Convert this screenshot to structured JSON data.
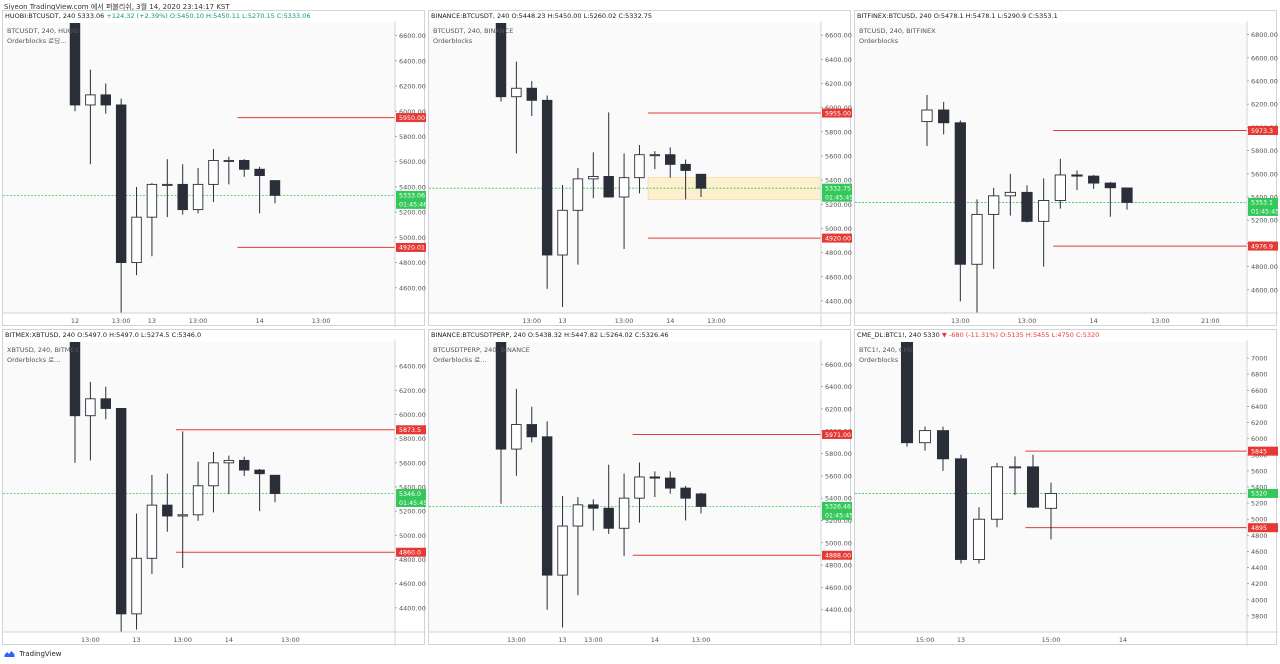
{
  "header": {
    "text": "Siyeon TradingView.com 에서 퍼블리쉬, 3월 14, 2020 23:14:17 KST"
  },
  "footer": {
    "brand": "TradingView",
    "logo_icon": "tradingview-logo-icon"
  },
  "colors": {
    "up": "#ffffff",
    "down": "#2a2e39",
    "red_line": "#e53935",
    "green_line": "#34c759",
    "zone": "#fdf0cf"
  },
  "panels": [
    {
      "header": {
        "symbol": "HUOBI:BTCUSDT, 240",
        "ohlc": "5333.06",
        "change": "+124.32 (+2.39%)",
        "o": "O:5450.10",
        "h": "H:5450.11",
        "l": "L:5270.15",
        "c": "C:5333.06",
        "change_dir": "up"
      },
      "legend": {
        "line1": "BTCUSDT, 240, HUOBI",
        "line2": "Orderblocks 로딩..."
      }
    },
    {
      "header": {
        "symbol": "BINANCE:BTCUSDT, 240",
        "ohlc": "",
        "change": "",
        "o": "O:5448.23",
        "h": "H:5450.00",
        "l": "L:5260.02",
        "c": "C:5332.75",
        "change_dir": ""
      },
      "legend": {
        "line1": "BTCUSDT, 240, BINANCE",
        "line2": "Orderblocks"
      }
    },
    {
      "header": {
        "symbol": "BITFINEX:BTCUSD, 240",
        "ohlc": "",
        "change": "",
        "o": "O:5478.1",
        "h": "H:5478.1",
        "l": "L:5290.9",
        "c": "C:5353.1",
        "change_dir": ""
      },
      "legend": {
        "line1": "BTCUSD, 240, BITFINEX",
        "line2": "Orderblocks"
      }
    },
    {
      "header": {
        "symbol": "BITMEX:XBTUSD, 240",
        "ohlc": "",
        "change": "",
        "o": "O:5497.0",
        "h": "H:5497.0",
        "l": "L:5274.5",
        "c": "C:5346.0",
        "change_dir": ""
      },
      "legend": {
        "line1": "XBTUSD, 240, BITMEX",
        "line2": "Orderblocks 로..."
      }
    },
    {
      "header": {
        "symbol": "BINANCE:BTCUSDTPERP, 240",
        "ohlc": "",
        "change": "",
        "o": "O:5438.32",
        "h": "H:5447.82",
        "l": "L:5264.02",
        "c": "C:5326.46",
        "change_dir": ""
      },
      "legend": {
        "line1": "BTCUSDTPERP, 240, BINANCE",
        "line2": "Orderblocks 로..."
      }
    },
    {
      "header": {
        "symbol": "CME_DL:BTC1!, 240",
        "ohlc": "5330",
        "change": "▼ -680 (-11.31%)",
        "o": "O:5135",
        "h": "H:5455",
        "l": "L:4750",
        "c": "C:5320",
        "change_dir": "dn"
      },
      "legend": {
        "line1": "BTC1!, 240, CME",
        "line2": "Orderblocks"
      }
    }
  ],
  "chart_data": [
    {
      "type": "candlestick",
      "ylim": [
        4400,
        6700
      ],
      "yticks": [
        4400,
        4600,
        4800,
        5000,
        5200,
        5400,
        5600,
        5800,
        6000,
        6200,
        6400,
        6600
      ],
      "xticks": [
        {
          "i": 0,
          "label": "12"
        },
        {
          "i": 3,
          "label": "13:00"
        },
        {
          "i": 5,
          "label": "13"
        },
        {
          "i": 8,
          "label": "13:00"
        },
        {
          "i": 12,
          "label": "14"
        },
        {
          "i": 16,
          "label": "13:00"
        }
      ],
      "candles": [
        {
          "o": 7200,
          "h": 7300,
          "l": 6000,
          "c": 6050
        },
        {
          "o": 6050,
          "h": 6330,
          "l": 5580,
          "c": 6130
        },
        {
          "o": 6130,
          "h": 6220,
          "l": 5980,
          "c": 6050
        },
        {
          "o": 6050,
          "h": 6100,
          "l": 4200,
          "c": 4800
        },
        {
          "o": 4800,
          "h": 5400,
          "l": 4700,
          "c": 5160
        },
        {
          "o": 5160,
          "h": 5430,
          "l": 4850,
          "c": 5420
        },
        {
          "o": 5420,
          "h": 5620,
          "l": 5160,
          "c": 5420
        },
        {
          "o": 5420,
          "h": 5580,
          "l": 5180,
          "c": 5220
        },
        {
          "o": 5220,
          "h": 5550,
          "l": 5190,
          "c": 5420
        },
        {
          "o": 5420,
          "h": 5700,
          "l": 5280,
          "c": 5610
        },
        {
          "o": 5610,
          "h": 5640,
          "l": 5420,
          "c": 5610
        },
        {
          "o": 5610,
          "h": 5620,
          "l": 5480,
          "c": 5540
        },
        {
          "o": 5540,
          "h": 5560,
          "l": 5190,
          "c": 5490
        },
        {
          "o": 5450,
          "h": 5450,
          "l": 5270,
          "c": 5333
        }
      ],
      "levels": [
        {
          "value": 5950,
          "label": "5950.00",
          "start": 11,
          "color": "red"
        },
        {
          "value": 4920,
          "label": "4920.01",
          "start": 11,
          "color": "red"
        },
        {
          "value": 5333,
          "label": "5333.06",
          "label2": "01:45:46",
          "color": "green"
        }
      ],
      "zone": null
    },
    {
      "type": "candlestick",
      "ylim": [
        4300,
        6700
      ],
      "yticks": [
        4400,
        4600,
        4800,
        5000,
        5200,
        5400,
        5600,
        5800,
        6000,
        6200,
        6400,
        6600
      ],
      "xticks": [
        {
          "i": 2,
          "label": "13:00"
        },
        {
          "i": 4,
          "label": "13"
        },
        {
          "i": 8,
          "label": "13:00"
        },
        {
          "i": 11,
          "label": "14"
        },
        {
          "i": 14,
          "label": "13:00"
        }
      ],
      "candles": [
        {
          "o": 7200,
          "h": 7300,
          "l": 6050,
          "c": 6090
        },
        {
          "o": 6090,
          "h": 6380,
          "l": 5620,
          "c": 6160
        },
        {
          "o": 6160,
          "h": 6220,
          "l": 5930,
          "c": 6060
        },
        {
          "o": 6060,
          "h": 6100,
          "l": 4500,
          "c": 4780
        },
        {
          "o": 4780,
          "h": 5360,
          "l": 4350,
          "c": 5150
        },
        {
          "o": 5150,
          "h": 5500,
          "l": 4700,
          "c": 5410
        },
        {
          "o": 5410,
          "h": 5630,
          "l": 5250,
          "c": 5430
        },
        {
          "o": 5430,
          "h": 5960,
          "l": 5280,
          "c": 5260
        },
        {
          "o": 5260,
          "h": 5620,
          "l": 4830,
          "c": 5420
        },
        {
          "o": 5420,
          "h": 5690,
          "l": 5290,
          "c": 5610
        },
        {
          "o": 5610,
          "h": 5640,
          "l": 5490,
          "c": 5610
        },
        {
          "o": 5610,
          "h": 5670,
          "l": 5420,
          "c": 5530
        },
        {
          "o": 5530,
          "h": 5570,
          "l": 5240,
          "c": 5480
        },
        {
          "o": 5448,
          "h": 5450,
          "l": 5260,
          "c": 5333
        }
      ],
      "levels": [
        {
          "value": 5955,
          "label": "5955.00",
          "start": 10,
          "color": "red"
        },
        {
          "value": 4920,
          "label": "4920.00",
          "start": 10,
          "color": "red"
        },
        {
          "value": 5333,
          "label": "5332.75",
          "label2": "01:45:45",
          "color": "green"
        }
      ],
      "zone": {
        "top": 5420,
        "bottom": 5240,
        "start": 10
      }
    },
    {
      "type": "candlestick",
      "ylim": [
        4400,
        6900
      ],
      "yticks": [
        4600,
        4800,
        5000,
        5200,
        5400,
        5600,
        5800,
        6000,
        6200,
        6400,
        6600,
        6800
      ],
      "xticks": [
        {
          "i": 2,
          "label": "13:00"
        },
        {
          "i": 6,
          "label": "13:00"
        },
        {
          "i": 10,
          "label": "14"
        },
        {
          "i": 14,
          "label": "13:00"
        },
        {
          "i": 17,
          "label": "21:00"
        }
      ],
      "candles": [
        {
          "o": 6050,
          "h": 6280,
          "l": 5840,
          "c": 6150
        },
        {
          "o": 6150,
          "h": 6220,
          "l": 5940,
          "c": 6040
        },
        {
          "o": 6040,
          "h": 6060,
          "l": 4500,
          "c": 4820
        },
        {
          "o": 4820,
          "h": 5380,
          "l": 4200,
          "c": 5250
        },
        {
          "o": 5250,
          "h": 5480,
          "l": 4780,
          "c": 5410
        },
        {
          "o": 5410,
          "h": 5600,
          "l": 5240,
          "c": 5440
        },
        {
          "o": 5440,
          "h": 5500,
          "l": 5180,
          "c": 5190
        },
        {
          "o": 5190,
          "h": 5560,
          "l": 4800,
          "c": 5370
        },
        {
          "o": 5370,
          "h": 5730,
          "l": 5300,
          "c": 5590
        },
        {
          "o": 5590,
          "h": 5630,
          "l": 5460,
          "c": 5580
        },
        {
          "o": 5580,
          "h": 5590,
          "l": 5470,
          "c": 5520
        },
        {
          "o": 5520,
          "h": 5530,
          "l": 5230,
          "c": 5480
        },
        {
          "o": 5478,
          "h": 5478,
          "l": 5291,
          "c": 5353
        }
      ],
      "levels": [
        {
          "value": 5973.3,
          "label": "5973.3",
          "start": 8,
          "color": "red"
        },
        {
          "value": 4976.9,
          "label": "4976.9",
          "start": 8,
          "color": "red"
        },
        {
          "value": 5353.1,
          "label": "5353.1",
          "label2": "01:45:45",
          "color": "green"
        }
      ],
      "zone": null
    },
    {
      "type": "candlestick",
      "ylim": [
        4200,
        6600
      ],
      "yticks": [
        4200,
        4400,
        4600,
        4800,
        5000,
        5200,
        5400,
        5600,
        5800,
        6000,
        6200,
        6400
      ],
      "xticks": [
        {
          "i": 1,
          "label": "13:00"
        },
        {
          "i": 4,
          "label": "13"
        },
        {
          "i": 7,
          "label": "13:00"
        },
        {
          "i": 10,
          "label": "14"
        },
        {
          "i": 14,
          "label": "13:00"
        }
      ],
      "candles": [
        {
          "o": 6900,
          "h": 7000,
          "l": 5600,
          "c": 5990
        },
        {
          "o": 5990,
          "h": 6270,
          "l": 5620,
          "c": 6130
        },
        {
          "o": 6130,
          "h": 6230,
          "l": 5960,
          "c": 6050
        },
        {
          "o": 6050,
          "h": 6050,
          "l": 4200,
          "c": 4350
        },
        {
          "o": 4350,
          "h": 5180,
          "l": 4220,
          "c": 4810
        },
        {
          "o": 4810,
          "h": 5500,
          "l": 4680,
          "c": 5250
        },
        {
          "o": 5250,
          "h": 5510,
          "l": 5030,
          "c": 5160
        },
        {
          "o": 5160,
          "h": 5860,
          "l": 4730,
          "c": 5170
        },
        {
          "o": 5170,
          "h": 5610,
          "l": 5120,
          "c": 5410
        },
        {
          "o": 5410,
          "h": 5690,
          "l": 5190,
          "c": 5600
        },
        {
          "o": 5600,
          "h": 5660,
          "l": 5340,
          "c": 5620
        },
        {
          "o": 5620,
          "h": 5650,
          "l": 5490,
          "c": 5540
        },
        {
          "o": 5540,
          "h": 5550,
          "l": 5200,
          "c": 5510
        },
        {
          "o": 5497,
          "h": 5497,
          "l": 5274,
          "c": 5346
        }
      ],
      "levels": [
        {
          "value": 5873.5,
          "label": "5873.5",
          "start": 7,
          "color": "red"
        },
        {
          "value": 4860,
          "label": "4860.0",
          "start": 7,
          "color": "red"
        },
        {
          "value": 5346,
          "label": "5346.0",
          "label2": "01:45:45",
          "color": "green"
        }
      ],
      "zone": null
    },
    {
      "type": "candlestick",
      "ylim": [
        4200,
        6800
      ],
      "yticks": [
        4400,
        4600,
        4800,
        5000,
        5200,
        5400,
        5600,
        5800,
        6000,
        6200,
        6400,
        6600
      ],
      "xticks": [
        {
          "i": 1,
          "label": "13:00"
        },
        {
          "i": 4,
          "label": "13"
        },
        {
          "i": 6,
          "label": "13:00"
        },
        {
          "i": 10,
          "label": "14"
        },
        {
          "i": 13,
          "label": "13:00"
        }
      ],
      "candles": [
        {
          "o": 6900,
          "h": 7000,
          "l": 5350,
          "c": 5840
        },
        {
          "o": 5840,
          "h": 6380,
          "l": 5600,
          "c": 6060
        },
        {
          "o": 6060,
          "h": 6220,
          "l": 5900,
          "c": 5950
        },
        {
          "o": 5950,
          "h": 6090,
          "l": 4400,
          "c": 4710
        },
        {
          "o": 4710,
          "h": 5420,
          "l": 4240,
          "c": 5150
        },
        {
          "o": 5150,
          "h": 5410,
          "l": 4530,
          "c": 5340
        },
        {
          "o": 5340,
          "h": 5390,
          "l": 5110,
          "c": 5310
        },
        {
          "o": 5310,
          "h": 5700,
          "l": 5080,
          "c": 5130
        },
        {
          "o": 5130,
          "h": 5620,
          "l": 4880,
          "c": 5400
        },
        {
          "o": 5400,
          "h": 5720,
          "l": 5180,
          "c": 5590
        },
        {
          "o": 5590,
          "h": 5640,
          "l": 5410,
          "c": 5580
        },
        {
          "o": 5580,
          "h": 5640,
          "l": 5440,
          "c": 5490
        },
        {
          "o": 5490,
          "h": 5510,
          "l": 5200,
          "c": 5400
        },
        {
          "o": 5438,
          "h": 5448,
          "l": 5264,
          "c": 5326
        }
      ],
      "levels": [
        {
          "value": 5971,
          "label": "5971.00",
          "start": 9,
          "color": "red"
        },
        {
          "value": 4888,
          "label": "4888.00",
          "start": 9,
          "color": "red"
        },
        {
          "value": 5326.46,
          "label": "5326.46",
          "label2": "01:45:45",
          "color": "green"
        }
      ],
      "zone": null
    },
    {
      "type": "candlestick",
      "ylim": [
        3600,
        7200
      ],
      "yticks": [
        3800,
        4000,
        4200,
        4400,
        4600,
        4800,
        5000,
        5200,
        5400,
        5600,
        5800,
        6000,
        6200,
        6400,
        6600,
        6800,
        7000
      ],
      "xticks": [
        {
          "i": 1,
          "label": "15:00"
        },
        {
          "i": 3,
          "label": "13"
        },
        {
          "i": 8,
          "label": "15:00"
        },
        {
          "i": 12,
          "label": "14"
        }
      ],
      "candles": [
        {
          "o": 7500,
          "h": 7600,
          "l": 5900,
          "c": 5950
        },
        {
          "o": 5950,
          "h": 6150,
          "l": 5850,
          "c": 6100
        },
        {
          "o": 6100,
          "h": 6150,
          "l": 5600,
          "c": 5750
        },
        {
          "o": 5750,
          "h": 5800,
          "l": 4450,
          "c": 4500
        },
        {
          "o": 4500,
          "h": 5150,
          "l": 4450,
          "c": 5000
        },
        {
          "o": 5000,
          "h": 5700,
          "l": 4900,
          "c": 5650
        },
        {
          "o": 5650,
          "h": 5780,
          "l": 5300,
          "c": 5650
        },
        {
          "o": 5650,
          "h": 5800,
          "l": 5140,
          "c": 5150
        },
        {
          "o": 5135,
          "h": 5455,
          "l": 4750,
          "c": 5320
        }
      ],
      "levels": [
        {
          "value": 5845,
          "label": "5845",
          "start": 7,
          "color": "red"
        },
        {
          "value": 4895,
          "label": "4895",
          "start": 7,
          "color": "red"
        },
        {
          "value": 5320,
          "label": "5320",
          "label2": "",
          "color": "green"
        }
      ],
      "zone": null
    }
  ]
}
